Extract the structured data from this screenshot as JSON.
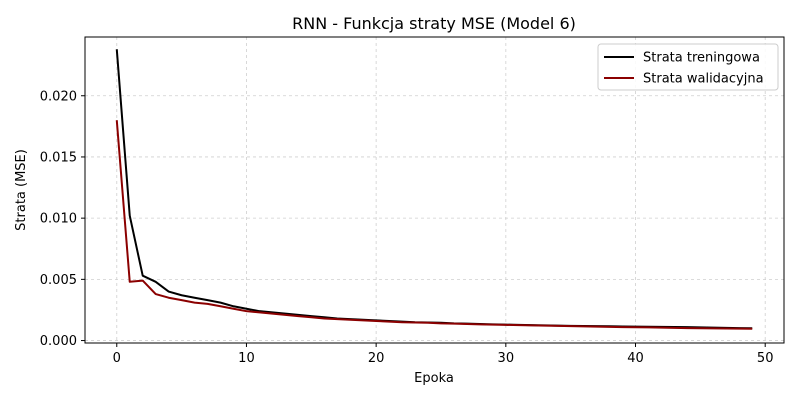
{
  "chart_data": {
    "type": "line",
    "title": "RNN - Funkcja straty MSE (Model 6)",
    "xlabel": "Epoka",
    "ylabel": "Strata (MSE)",
    "xlim": [
      -2.45,
      51.45
    ],
    "ylim": [
      -0.0002,
      0.0248
    ],
    "xticks": [
      0,
      10,
      20,
      30,
      40,
      50
    ],
    "xtick_labels": [
      "0",
      "10",
      "20",
      "30",
      "40",
      "50"
    ],
    "yticks": [
      0.0,
      0.005,
      0.01,
      0.015,
      0.02
    ],
    "ytick_labels": [
      "0.000",
      "0.005",
      "0.010",
      "0.015",
      "0.020"
    ],
    "grid": true,
    "legend_position": "top-right",
    "x": [
      0,
      1,
      2,
      3,
      4,
      5,
      6,
      7,
      8,
      9,
      10,
      11,
      12,
      13,
      14,
      15,
      16,
      17,
      18,
      19,
      20,
      21,
      22,
      23,
      24,
      25,
      26,
      27,
      28,
      29,
      30,
      31,
      32,
      33,
      34,
      35,
      36,
      37,
      38,
      39,
      40,
      41,
      42,
      43,
      44,
      45,
      46,
      47,
      48,
      49
    ],
    "series": [
      {
        "name": "Strata treningowa",
        "color": "#000000",
        "values": [
          0.0238,
          0.0102,
          0.0053,
          0.0048,
          0.004,
          0.0037,
          0.0035,
          0.0033,
          0.0031,
          0.0028,
          0.0026,
          0.0024,
          0.0023,
          0.0022,
          0.0021,
          0.002,
          0.0019,
          0.0018,
          0.00175,
          0.0017,
          0.00165,
          0.0016,
          0.00155,
          0.0015,
          0.00148,
          0.00145,
          0.0014,
          0.00138,
          0.00135,
          0.00132,
          0.0013,
          0.00128,
          0.00126,
          0.00124,
          0.00122,
          0.0012,
          0.00119,
          0.00118,
          0.00117,
          0.00115,
          0.00114,
          0.00113,
          0.00112,
          0.00111,
          0.0011,
          0.00108,
          0.00106,
          0.00104,
          0.00102,
          0.001
        ]
      },
      {
        "name": "Strata walidacyjna",
        "color": "#8b0000",
        "values": [
          0.018,
          0.0048,
          0.0049,
          0.0038,
          0.0035,
          0.0033,
          0.0031,
          0.003,
          0.0028,
          0.0026,
          0.0024,
          0.0023,
          0.0022,
          0.0021,
          0.002,
          0.0019,
          0.0018,
          0.00175,
          0.0017,
          0.00165,
          0.0016,
          0.00155,
          0.0015,
          0.00148,
          0.00145,
          0.0014,
          0.00138,
          0.00135,
          0.00132,
          0.0013,
          0.00128,
          0.00126,
          0.00124,
          0.00122,
          0.0012,
          0.00118,
          0.00116,
          0.00114,
          0.00112,
          0.0011,
          0.00109,
          0.00108,
          0.00106,
          0.00104,
          0.00102,
          0.001,
          0.00099,
          0.00098,
          0.00097,
          0.00096
        ]
      }
    ]
  }
}
